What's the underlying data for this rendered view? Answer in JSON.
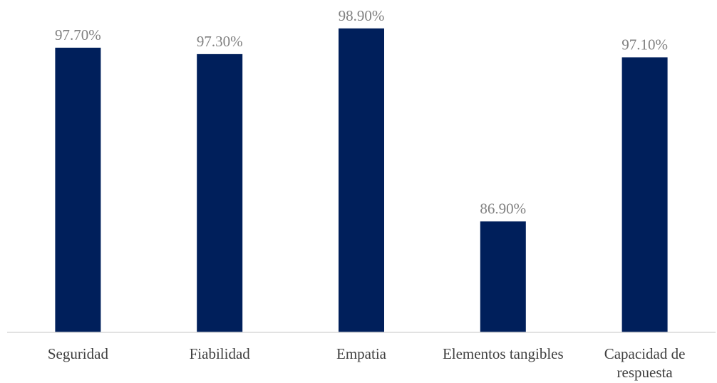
{
  "chart_data": {
    "type": "bar",
    "categories": [
      [
        "Seguridad"
      ],
      [
        "Fiabilidad"
      ],
      [
        "Empatia"
      ],
      [
        "Elementos tangibles"
      ],
      [
        "Capacidad de",
        "respuesta"
      ]
    ],
    "values": [
      97.7,
      97.3,
      98.9,
      86.9,
      97.1
    ],
    "data_labels": [
      "97.70%",
      "97.30%",
      "98.90%",
      "86.90%",
      "97.10%"
    ],
    "title": "",
    "xlabel": "",
    "ylabel": "",
    "ylim": [
      80,
      100
    ],
    "grid": false,
    "legend": "none",
    "bar_color": "#001f5b",
    "axis_color": "#d9d9d9"
  }
}
